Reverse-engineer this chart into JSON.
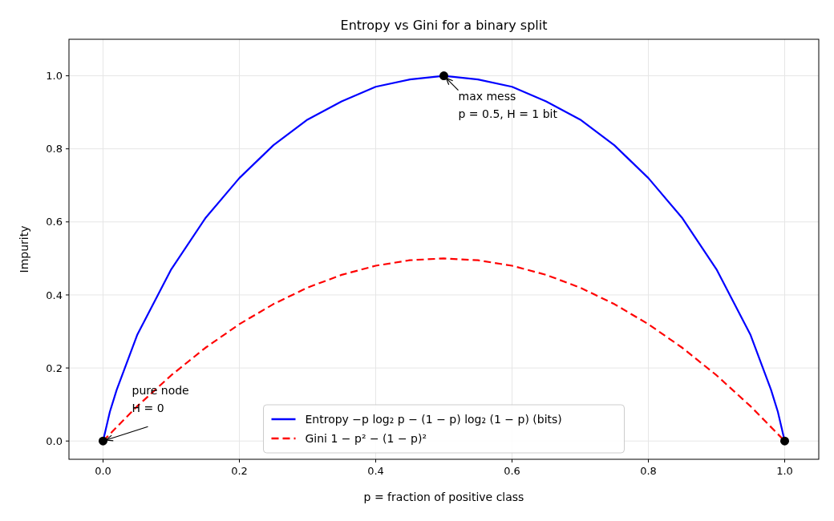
{
  "chart_data": {
    "type": "line",
    "title": "Entropy vs Gini for a binary split",
    "xlabel": "p = fraction of positive class",
    "ylabel": "Impurity",
    "xlim": [
      -0.05,
      1.05
    ],
    "ylim": [
      -0.05,
      1.1
    ],
    "xticks": [
      {
        "value": 0,
        "label": "0.0"
      },
      {
        "value": 0.2,
        "label": "0.2"
      },
      {
        "value": 0.4,
        "label": "0.4"
      },
      {
        "value": 0.6,
        "label": "0.6"
      },
      {
        "value": 0.8,
        "label": "0.8"
      },
      {
        "value": 1,
        "label": "1.0"
      }
    ],
    "yticks": [
      {
        "value": 0,
        "label": "0.0"
      },
      {
        "value": 0.2,
        "label": "0.2"
      },
      {
        "value": 0.4,
        "label": "0.4"
      },
      {
        "value": 0.6,
        "label": "0.6"
      },
      {
        "value": 0.8,
        "label": "0.8"
      },
      {
        "value": 1,
        "label": "1.0"
      }
    ],
    "grid": true,
    "legend": "bottom",
    "series": [
      {
        "name": "Entropy  −p log₂ p − (1 − p) log₂ (1 − p) (bits)",
        "color": "#0000ff",
        "line_style": "solid",
        "x": [
          0,
          0.01,
          0.02,
          0.05,
          0.1,
          0.15,
          0.2,
          0.25,
          0.3,
          0.35,
          0.4,
          0.45,
          0.5,
          0.55,
          0.6,
          0.65,
          0.7,
          0.75,
          0.8,
          0.85,
          0.9,
          0.95,
          0.98,
          0.99,
          1
        ],
        "values": [
          0,
          0.08,
          0.14,
          0.29,
          0.47,
          0.61,
          0.72,
          0.81,
          0.88,
          0.93,
          0.97,
          0.99,
          1,
          0.99,
          0.97,
          0.93,
          0.88,
          0.81,
          0.72,
          0.61,
          0.47,
          0.29,
          0.14,
          0.08,
          0
        ]
      },
      {
        "name": "Gini  1 − p² − (1 − p)²",
        "color": "#ff0000",
        "line_style": "dashed",
        "x": [
          0,
          0.05,
          0.1,
          0.15,
          0.2,
          0.25,
          0.3,
          0.35,
          0.4,
          0.45,
          0.5,
          0.55,
          0.6,
          0.65,
          0.7,
          0.75,
          0.8,
          0.85,
          0.9,
          0.95,
          1
        ],
        "values": [
          0,
          0.095,
          0.18,
          0.255,
          0.32,
          0.375,
          0.42,
          0.455,
          0.48,
          0.495,
          0.5,
          0.495,
          0.48,
          0.455,
          0.42,
          0.375,
          0.32,
          0.255,
          0.18,
          0.095,
          0
        ]
      },
      {
        "type": "scatter",
        "color": "#000000",
        "marker": "circle",
        "x": [
          0,
          0.5,
          1
        ],
        "values": [
          0,
          1,
          0
        ]
      }
    ],
    "annotations": [
      {
        "text": "max mess\np = 0.5,  H = 1 bit",
        "x": 0.5,
        "y": 1
      },
      {
        "text": "pure node\nH = 0",
        "x": 0,
        "y": 0
      }
    ]
  }
}
